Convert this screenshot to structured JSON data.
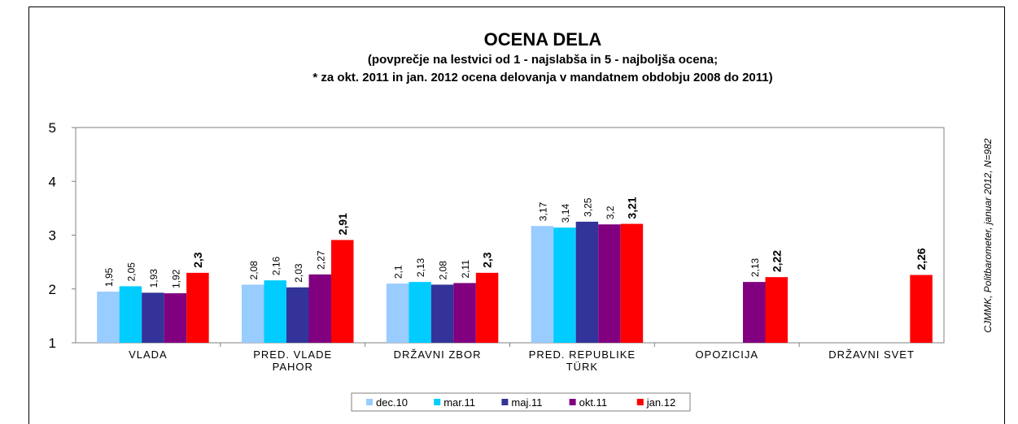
{
  "chart_data": {
    "type": "bar",
    "title": "OCENA DELA",
    "subtitle": [
      "(povprečje na lestvici  od 1 - najslabša in 5 - najboljša ocena;",
      "* za okt. 2011 in jan. 2012 ocena delovanja v mandatnem obdobju 2008 do 2011)"
    ],
    "annotation": "CJMMK, Politbarometer, januar 2012, N=982",
    "categories": [
      [
        "VLADA"
      ],
      [
        "PRED. VLADE",
        "PAHOR"
      ],
      [
        "DRŽAVNI ZBOR"
      ],
      [
        "PRED. REPUBLIKE",
        "TÜRK"
      ],
      [
        "OPOZICIJA"
      ],
      [
        "DRŽAVNI SVET"
      ]
    ],
    "series": [
      {
        "name": "dec.10",
        "color": "#99ccff",
        "values": [
          1.95,
          2.08,
          2.1,
          3.17,
          null,
          null
        ],
        "value_labels": [
          "1,95",
          "2,08",
          "2,1",
          "3,17",
          null,
          null
        ]
      },
      {
        "name": "mar.11",
        "color": "#00ccff",
        "values": [
          2.05,
          2.16,
          2.13,
          3.14,
          null,
          null
        ],
        "value_labels": [
          "2,05",
          "2,16",
          "2,13",
          "3,14",
          null,
          null
        ]
      },
      {
        "name": "maj.11",
        "color": "#333399",
        "values": [
          1.93,
          2.03,
          2.08,
          3.25,
          null,
          null
        ],
        "value_labels": [
          "1,93",
          "2,03",
          "2,08",
          "3,25",
          null,
          null
        ]
      },
      {
        "name": "okt.11",
        "color": "#800080",
        "values": [
          1.92,
          2.27,
          2.11,
          3.2,
          2.13,
          null
        ],
        "value_labels": [
          "1,92",
          "2,27",
          "2,11",
          "3,2",
          "2,13",
          null
        ]
      },
      {
        "name": "jan.12",
        "color": "#ff0000",
        "values": [
          2.3,
          2.91,
          2.3,
          3.21,
          2.22,
          2.26
        ],
        "value_labels": [
          "2,3",
          "2,91",
          "2,3",
          "3,21",
          "2,22",
          "2,26"
        ]
      }
    ],
    "ylim": [
      1,
      5
    ],
    "yticks": [
      1,
      2,
      3,
      4,
      5
    ],
    "grid": false,
    "legend": "bottom"
  }
}
